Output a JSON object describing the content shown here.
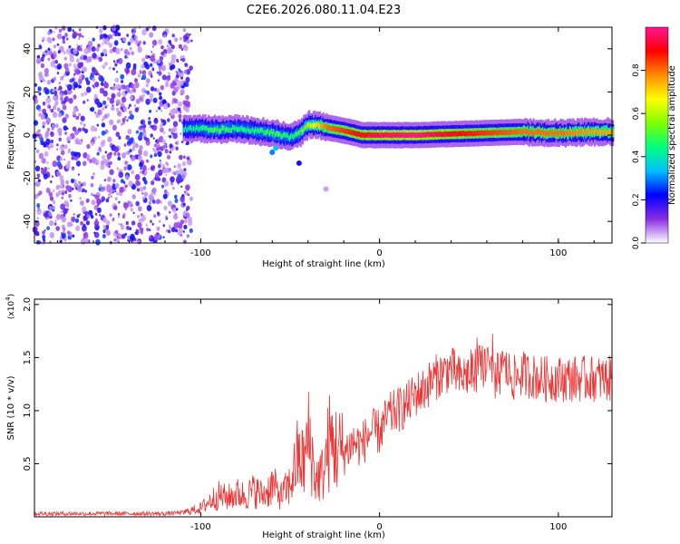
{
  "title": "C2E6.2026.080.11.04.E23",
  "chart_data": [
    {
      "type": "heatmap",
      "xlabel": "Height of straight line (km)",
      "ylabel": "Frequency (Hz)",
      "xlim": [
        -193,
        130
      ],
      "ylim": [
        -50,
        50
      ],
      "xticks": [
        -100,
        0,
        100
      ],
      "yticks": [
        -40,
        -20,
        0,
        20,
        40
      ],
      "colorbar": {
        "label": "Normalized spectral amplitude",
        "range": [
          0,
          1
        ],
        "ticks": [
          "0.0",
          "0.2",
          "0.4",
          "0.6",
          "0.8"
        ],
        "colors": [
          "#ffffff",
          "#8a2be2",
          "#0000ff",
          "#00bfff",
          "#00ff7f",
          "#7fff00",
          "#ffff00",
          "#ff8c00",
          "#ff0000",
          "#ff1493"
        ]
      },
      "noise_region_x": [
        -193,
        -105
      ],
      "signal_track": {
        "x": [
          -110,
          -100,
          -90,
          -80,
          -70,
          -60,
          -50,
          -45,
          -40,
          -35,
          -30,
          -20,
          -10,
          0,
          20,
          40,
          60,
          80,
          100,
          120,
          130
        ],
        "y": [
          3,
          3,
          2.5,
          3,
          2,
          1,
          -1,
          1,
          5,
          4.5,
          3.5,
          2,
          0,
          0,
          0,
          0.5,
          1,
          1.5,
          1,
          1.5,
          1.5
        ],
        "amplitude": [
          0.4,
          0.45,
          0.5,
          0.45,
          0.45,
          0.5,
          0.45,
          0.5,
          0.6,
          0.7,
          0.8,
          0.85,
          0.9,
          0.95,
          0.98,
          0.9,
          0.85,
          0.8,
          0.8,
          0.75,
          0.75
        ]
      }
    },
    {
      "type": "line",
      "xlabel": "Height of straight line (km)",
      "ylabel": "SNR (10 * v/v)",
      "yscale_label": "(x10",
      "yscale_exp": "4",
      "yscale_close": ")",
      "xlim": [
        -193,
        130
      ],
      "ylim": [
        0,
        2.05
      ],
      "xticks": [
        -100,
        0,
        100
      ],
      "yticks": [
        0.5,
        1.0,
        1.5,
        2.0
      ],
      "ytick_labels": [
        "0.5",
        "1.0",
        "1.5",
        "2.0"
      ],
      "series": [
        {
          "name": "SNR",
          "color": "#ee3333",
          "x": [
            -193,
            -180,
            -160,
            -140,
            -120,
            -110,
            -100,
            -95,
            -90,
            -85,
            -80,
            -75,
            -70,
            -65,
            -60,
            -55,
            -50,
            -46,
            -42,
            -40,
            -38,
            -36,
            -32,
            -30,
            -28,
            -25,
            -20,
            -15,
            -10,
            -5,
            0,
            5,
            10,
            15,
            20,
            25,
            30,
            35,
            40,
            45,
            50,
            55,
            60,
            65,
            70,
            75,
            80,
            90,
            100,
            110,
            120,
            130
          ],
          "values": [
            0.03,
            0.03,
            0.03,
            0.03,
            0.03,
            0.04,
            0.08,
            0.15,
            0.2,
            0.18,
            0.22,
            0.2,
            0.25,
            0.2,
            0.3,
            0.2,
            0.3,
            0.55,
            0.5,
            0.75,
            0.6,
            0.35,
            0.4,
            0.55,
            0.7,
            0.65,
            0.6,
            0.7,
            0.68,
            0.8,
            0.8,
            0.95,
            1.0,
            1.05,
            1.15,
            1.2,
            1.3,
            1.35,
            1.4,
            1.3,
            1.35,
            1.4,
            1.45,
            1.3,
            1.4,
            1.3,
            1.35,
            1.3,
            1.3,
            1.3,
            1.3,
            1.3
          ]
        }
      ]
    }
  ]
}
